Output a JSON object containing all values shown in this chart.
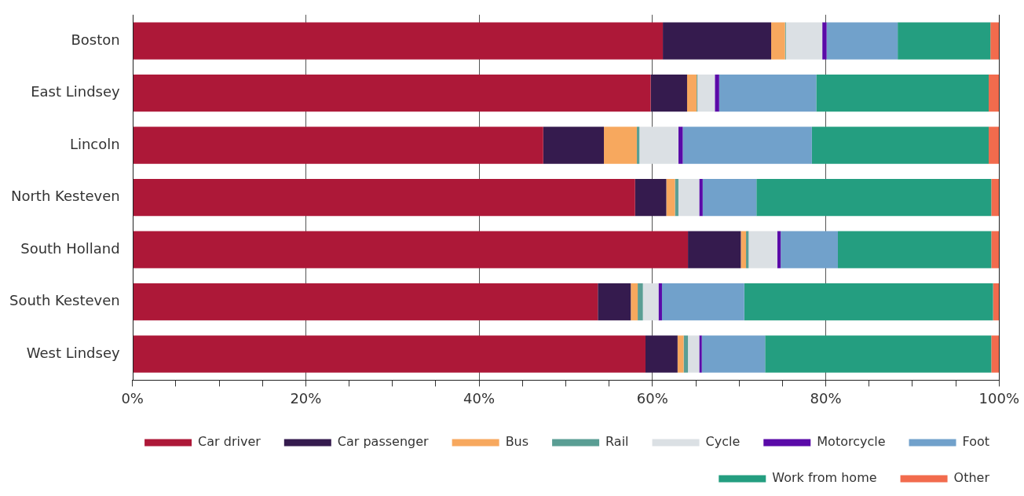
{
  "chart_data": {
    "type": "bar",
    "orientation": "horizontal",
    "stacked": true,
    "categories": [
      "Boston",
      "East Lindsey",
      "Lincoln",
      "North Kesteven",
      "South Holland",
      "South Kesteven",
      "West Lindsey"
    ],
    "series": [
      {
        "name": "Car driver",
        "color": "#ad1838",
        "values": [
          61.2,
          59.8,
          47.4,
          58.0,
          64.1,
          53.7,
          59.2
        ]
      },
      {
        "name": "Car passenger",
        "color": "#351b4e",
        "values": [
          12.5,
          4.2,
          7.0,
          3.6,
          6.1,
          3.8,
          3.7
        ]
      },
      {
        "name": "Bus",
        "color": "#f7a85e",
        "values": [
          1.6,
          1.1,
          3.8,
          1.0,
          0.6,
          0.8,
          0.7
        ]
      },
      {
        "name": "Rail",
        "color": "#5a9e94",
        "values": [
          0.1,
          0.1,
          0.3,
          0.4,
          0.3,
          0.6,
          0.5
        ]
      },
      {
        "name": "Cycle",
        "color": "#dbe0e4",
        "values": [
          4.2,
          2.0,
          4.5,
          2.4,
          3.3,
          1.8,
          1.3
        ]
      },
      {
        "name": "Motorcycle",
        "color": "#5a0aa8",
        "values": [
          0.5,
          0.5,
          0.5,
          0.4,
          0.4,
          0.4,
          0.3
        ]
      },
      {
        "name": "Foot",
        "color": "#71a1cb",
        "values": [
          8.2,
          11.2,
          14.9,
          6.2,
          6.6,
          9.5,
          7.3
        ]
      },
      {
        "name": "Work from home",
        "color": "#249e80",
        "values": [
          10.7,
          19.9,
          20.4,
          27.1,
          17.7,
          28.7,
          26.1
        ]
      },
      {
        "name": "Other",
        "color": "#f26b4d",
        "values": [
          1.0,
          1.2,
          1.2,
          0.9,
          0.9,
          0.7,
          0.9
        ]
      }
    ],
    "xlim": [
      0,
      100
    ],
    "xticks": [
      {
        "value": 0,
        "label": "0%"
      },
      {
        "value": 5,
        "label": null
      },
      {
        "value": 10,
        "label": null
      },
      {
        "value": 15,
        "label": null
      },
      {
        "value": 20,
        "label": "20%"
      },
      {
        "value": 25,
        "label": null
      },
      {
        "value": 30,
        "label": null
      },
      {
        "value": 35,
        "label": null
      },
      {
        "value": 40,
        "label": "40%"
      },
      {
        "value": 45,
        "label": null
      },
      {
        "value": 50,
        "label": null
      },
      {
        "value": 55,
        "label": null
      },
      {
        "value": 60,
        "label": "60%"
      },
      {
        "value": 65,
        "label": null
      },
      {
        "value": 70,
        "label": null
      },
      {
        "value": 75,
        "label": null
      },
      {
        "value": 80,
        "label": "80%"
      },
      {
        "value": 85,
        "label": null
      },
      {
        "value": 90,
        "label": null
      },
      {
        "value": 95,
        "label": null
      },
      {
        "value": 100,
        "label": "100%"
      }
    ],
    "grid": "x",
    "legend": "bottom right"
  }
}
